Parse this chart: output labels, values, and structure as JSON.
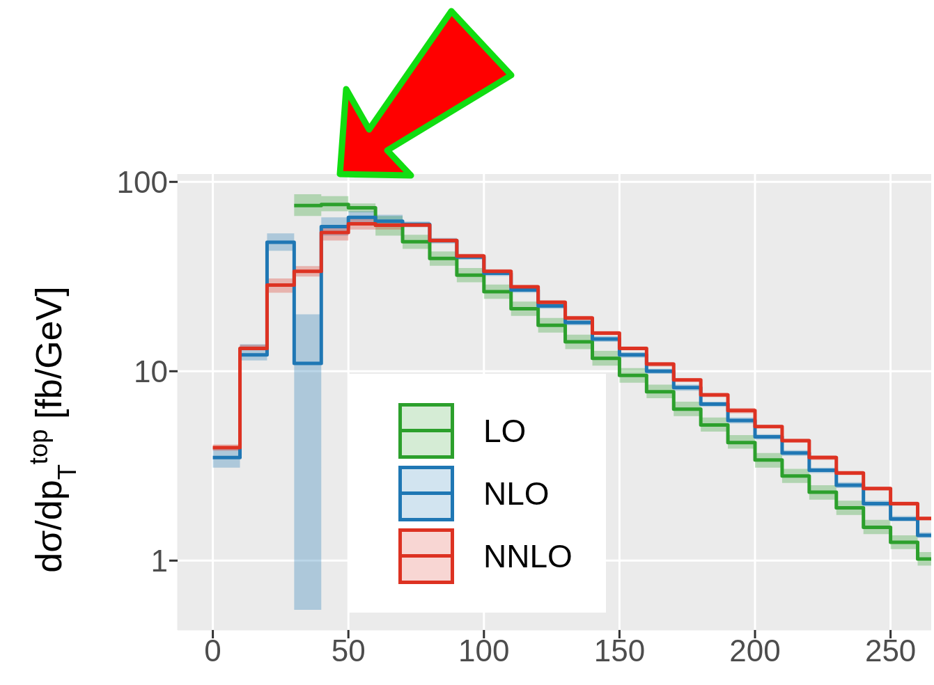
{
  "chart_data": {
    "type": "step",
    "ylabel": "dσ/dp$_{T}$$^{top}$ [fb/GeV]",
    "x": [
      0,
      10,
      20,
      30,
      40,
      50,
      60,
      70,
      80,
      90,
      100,
      110,
      120,
      130,
      140,
      150,
      160,
      170,
      180,
      190,
      200,
      210,
      220,
      230,
      240,
      250,
      260
    ],
    "series": [
      {
        "name": "LO",
        "color": "#2ca02c",
        "values": [
          null,
          null,
          null,
          75,
          76,
          73,
          59,
          48.3,
          39.4,
          32.2,
          26.3,
          21.4,
          17.5,
          14.3,
          11.7,
          9.5,
          7.8,
          6.3,
          5.2,
          4.2,
          3.4,
          2.8,
          2.3,
          1.9,
          1.5,
          1.25,
          1.02
        ],
        "upper": [
          null,
          null,
          null,
          86,
          84,
          77,
          66,
          52.6,
          42.9,
          35.1,
          28.7,
          23.3,
          19.1,
          15.6,
          12.8,
          10.4,
          8.5,
          6.9,
          5.7,
          4.6,
          3.7,
          3.05,
          2.5,
          2.07,
          1.64,
          1.36,
          1.11
        ],
        "lower": [
          null,
          null,
          null,
          66,
          70,
          69,
          52,
          44.3,
          36.1,
          29.5,
          24.1,
          19.6,
          16.0,
          13.1,
          10.7,
          8.7,
          7.2,
          5.8,
          4.8,
          3.9,
          3.1,
          2.57,
          2.1,
          1.74,
          1.38,
          1.15,
          0.94
        ]
      },
      {
        "name": "NLO",
        "color": "#1f77b4",
        "values": [
          3.5,
          12.2,
          48,
          11,
          58,
          65,
          62,
          59.7,
          48.9,
          40.1,
          32.9,
          26.9,
          22.1,
          18.1,
          14.8,
          12.2,
          10.0,
          8.2,
          6.7,
          5.5,
          4.5,
          3.7,
          3.0,
          2.5,
          2.0,
          1.66,
          1.36
        ],
        "upper": [
          4.0,
          13.9,
          53.5,
          20,
          65,
          70,
          67,
          61.7,
          50.6,
          41.5,
          34.0,
          27.8,
          22.9,
          18.7,
          15.3,
          12.6,
          10.3,
          8.5,
          6.9,
          5.7,
          4.65,
          3.83,
          3.1,
          2.59,
          2.07,
          1.72,
          1.41
        ],
        "lower": [
          3.1,
          11.4,
          43.3,
          0.55,
          52,
          59,
          58,
          57.7,
          47.3,
          38.8,
          31.8,
          26.0,
          21.4,
          17.5,
          14.3,
          11.8,
          9.7,
          7.9,
          6.5,
          5.3,
          4.35,
          3.58,
          2.9,
          2.42,
          1.93,
          1.61,
          1.32
        ]
      },
      {
        "name": "NNLO",
        "color": "#dd3222",
        "values": [
          3.95,
          13.2,
          28.5,
          33.7,
          54,
          60,
          59,
          59.2,
          49.0,
          40.6,
          33.7,
          27.9,
          23.1,
          19.1,
          15.9,
          13.2,
          10.9,
          9.0,
          7.5,
          6.2,
          5.1,
          4.3,
          3.5,
          2.9,
          2.4,
          2.0,
          1.67
        ],
        "upper": [
          4.1,
          13.8,
          30.9,
          35.9,
          59,
          64,
          62,
          60.7,
          50.3,
          41.7,
          34.6,
          28.6,
          23.7,
          19.6,
          16.3,
          13.5,
          11.2,
          9.2,
          7.7,
          6.4,
          5.2,
          4.4,
          3.6,
          2.98,
          2.46,
          2.05,
          1.71
        ],
        "lower": [
          3.8,
          12.9,
          26,
          31.6,
          49,
          56,
          56,
          57.7,
          47.8,
          39.6,
          32.8,
          27.2,
          22.5,
          18.6,
          15.5,
          12.9,
          10.6,
          8.8,
          7.3,
          6.0,
          5.0,
          4.2,
          3.4,
          2.83,
          2.34,
          1.95,
          1.63
        ]
      }
    ],
    "xlim": [
      -13,
      265
    ],
    "xticks": [
      0,
      50,
      100,
      150,
      200,
      250
    ],
    "ylim": [
      0.43,
      110
    ],
    "yticks": [
      1,
      10,
      100
    ],
    "log": "y",
    "grid": true,
    "legend": "bottom"
  }
}
